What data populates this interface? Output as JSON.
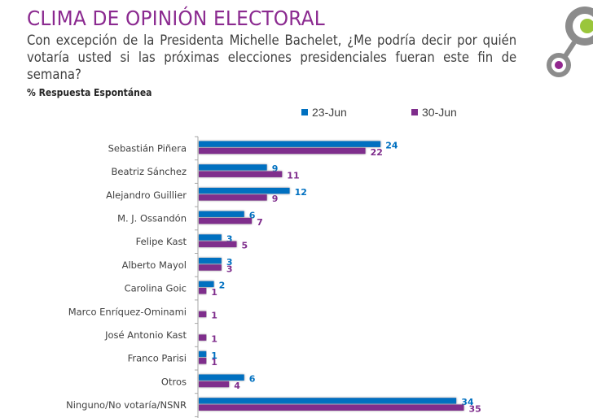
{
  "header": {
    "title": "CLIMA DE OPINIÓN ELECTORAL",
    "question": "Con excepción de la Presidenta Michelle Bachelet, ¿Me podría decir por quién votaría usted si las próximas elecciones presidenciales fueran este fin de semana?",
    "subtitle": "% Respuesta Espontánea"
  },
  "logo": {
    "icon": "connected-circles-logo",
    "colors": {
      "ring": "#8c8c8c",
      "dot_large": "#9ac63b",
      "dot_small": "#92278f"
    }
  },
  "chart_data": {
    "type": "bar",
    "orientation": "horizontal",
    "title": "CLIMA DE OPINIÓN ELECTORAL",
    "subtitle": "% Respuesta Espontánea",
    "xlabel": "",
    "ylabel": "",
    "xlim": [
      0,
      35
    ],
    "grid": false,
    "legend_position": "top",
    "categories": [
      "Sebastián Piñera",
      "Beatriz Sánchez",
      "Alejandro  Guillier",
      "M. J. Ossandón",
      "Felipe Kast",
      "Alberto Mayol",
      "Carolina Goic",
      "Marco Enríquez-Ominami",
      "José Antonio Kast",
      "Franco Parisi",
      "Otros",
      "Ninguno/No votaría/NSNR"
    ],
    "series": [
      {
        "name": "23-Jun",
        "color": "#0070c0",
        "values": [
          24,
          9,
          12,
          6,
          3,
          3,
          2,
          null,
          null,
          1,
          6,
          34
        ]
      },
      {
        "name": "30-Jun",
        "color": "#7f2d8c",
        "values": [
          22,
          11,
          9,
          7,
          5,
          3,
          1,
          1,
          1,
          1,
          4,
          35
        ]
      }
    ]
  }
}
